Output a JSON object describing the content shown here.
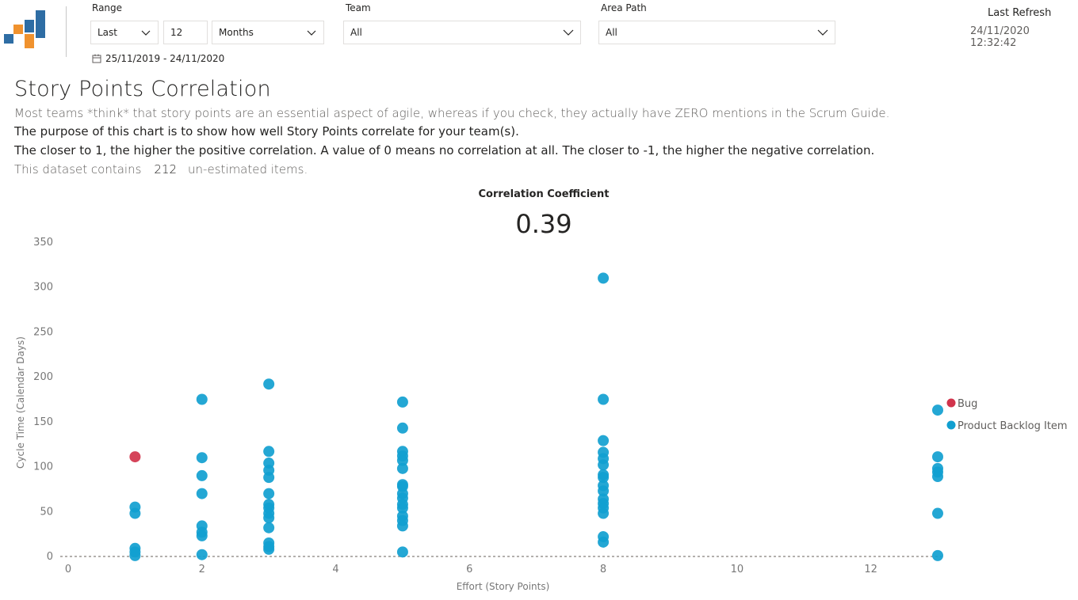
{
  "filters": {
    "range": {
      "label": "Range",
      "mode": "Last",
      "count": "12",
      "unit": "Months",
      "date_range": "25/11/2019 - 24/11/2020"
    },
    "team": {
      "label": "Team",
      "value": "All"
    },
    "area_path": {
      "label": "Area Path",
      "value": "All"
    }
  },
  "refresh": {
    "label": "Last Refresh",
    "value": "24/11/2020 12:32:42"
  },
  "page": {
    "title": "Story Points Correlation",
    "line1": "Most teams *think* that story points are an essential aspect of agile, whereas if you check, they actually have ZERO mentions in the Scrum Guide.",
    "line2": "The purpose of this chart is to show how well Story Points correlate for your team(s).",
    "line3": "The closer to 1, the higher the positive correlation. A value of 0 means no correlation at all. The closer to -1, the higher the negative correlation.",
    "dataset_prefix": "This dataset contains",
    "dataset_count": "212",
    "dataset_suffix": "un-estimated items."
  },
  "kpi": {
    "label": "Correlation Coefficient",
    "value": "0.39"
  },
  "colors": {
    "bug": "#d1344c",
    "pbi": "#119fd0",
    "logo_blue": "#2e6da4",
    "logo_orange": "#f0922e"
  },
  "chart_data": {
    "type": "scatter",
    "xlabel": "Effort (Story Points)",
    "ylabel": "Cycle Time (Calendar Days)",
    "xlim": [
      0,
      13
    ],
    "ylim": [
      0,
      350
    ],
    "xticks": [
      0,
      2,
      4,
      6,
      8,
      10,
      12
    ],
    "yticks": [
      0,
      50,
      100,
      150,
      200,
      250,
      300,
      350
    ],
    "legend_position": "right",
    "series": [
      {
        "name": "Bug",
        "color": "#d1344c",
        "points": [
          [
            1,
            111
          ]
        ]
      },
      {
        "name": "Product Backlog Item",
        "color": "#119fd0",
        "points": [
          [
            1,
            55
          ],
          [
            1,
            48
          ],
          [
            1,
            9
          ],
          [
            1,
            5
          ],
          [
            1,
            1
          ],
          [
            2,
            175
          ],
          [
            2,
            110
          ],
          [
            2,
            90
          ],
          [
            2,
            70
          ],
          [
            2,
            34
          ],
          [
            2,
            27
          ],
          [
            2,
            23
          ],
          [
            2,
            2
          ],
          [
            3,
            192
          ],
          [
            3,
            117
          ],
          [
            3,
            104
          ],
          [
            3,
            96
          ],
          [
            3,
            88
          ],
          [
            3,
            70
          ],
          [
            3,
            58
          ],
          [
            3,
            54
          ],
          [
            3,
            48
          ],
          [
            3,
            43
          ],
          [
            3,
            32
          ],
          [
            3,
            15
          ],
          [
            3,
            11
          ],
          [
            3,
            8
          ],
          [
            5,
            172
          ],
          [
            5,
            143
          ],
          [
            5,
            117
          ],
          [
            5,
            112
          ],
          [
            5,
            107
          ],
          [
            5,
            98
          ],
          [
            5,
            80
          ],
          [
            5,
            78
          ],
          [
            5,
            70
          ],
          [
            5,
            65
          ],
          [
            5,
            58
          ],
          [
            5,
            54
          ],
          [
            5,
            45
          ],
          [
            5,
            40
          ],
          [
            5,
            34
          ],
          [
            5,
            5
          ],
          [
            8,
            310
          ],
          [
            8,
            175
          ],
          [
            8,
            129
          ],
          [
            8,
            116
          ],
          [
            8,
            109
          ],
          [
            8,
            102
          ],
          [
            8,
            91
          ],
          [
            8,
            88
          ],
          [
            8,
            79
          ],
          [
            8,
            73
          ],
          [
            8,
            64
          ],
          [
            8,
            59
          ],
          [
            8,
            54
          ],
          [
            8,
            48
          ],
          [
            8,
            22
          ],
          [
            8,
            16
          ],
          [
            13,
            163
          ],
          [
            13,
            111
          ],
          [
            13,
            98
          ],
          [
            13,
            94
          ],
          [
            13,
            89
          ],
          [
            13,
            48
          ],
          [
            13,
            1
          ]
        ]
      }
    ]
  }
}
